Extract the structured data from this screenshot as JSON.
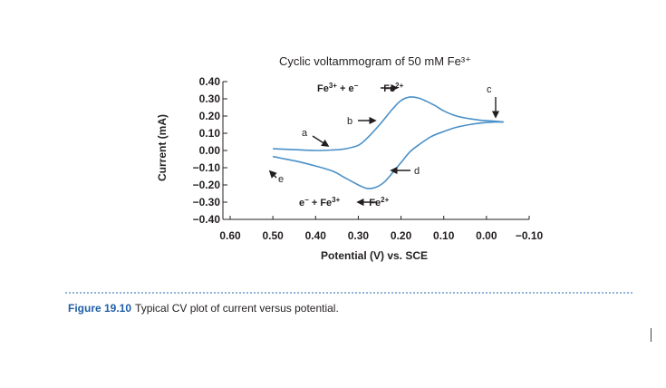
{
  "figure": {
    "label": "Figure 19.10",
    "caption": "Typical CV plot of current versus potential."
  },
  "colors": {
    "curve": "#4a90c8",
    "axis": "#231f20",
    "caption_label": "#1f5fa6",
    "rule": "#8fb3d9"
  },
  "chart_data": {
    "type": "line",
    "title": "Cyclic voltammogram of 50 mM Fe³⁺",
    "xlabel": "Potential (V) vs. SCE",
    "ylabel": "Current (mA)",
    "xlim": [
      0.6,
      -0.1
    ],
    "ylim": [
      -0.4,
      0.4
    ],
    "x_reversed": true,
    "grid": false,
    "x_ticks": [
      {
        "value": 0.6,
        "label": "0.60"
      },
      {
        "value": 0.5,
        "label": "0.50"
      },
      {
        "value": 0.4,
        "label": "0.40"
      },
      {
        "value": 0.3,
        "label": "0.30"
      },
      {
        "value": 0.2,
        "label": "0.20"
      },
      {
        "value": 0.1,
        "label": "0.10"
      },
      {
        "value": 0.0,
        "label": "0.00"
      },
      {
        "value": -0.1,
        "label": "−0.10"
      }
    ],
    "y_ticks": [
      {
        "value": 0.4,
        "label": "0.40"
      },
      {
        "value": 0.3,
        "label": "0.30"
      },
      {
        "value": 0.2,
        "label": "0.20"
      },
      {
        "value": 0.1,
        "label": "0.10"
      },
      {
        "value": 0.0,
        "label": "0.00"
      },
      {
        "value": -0.1,
        "label": "−0.10"
      },
      {
        "value": -0.2,
        "label": "−0.20"
      },
      {
        "value": -0.3,
        "label": "−0.30"
      },
      {
        "value": -0.4,
        "label": "−0.40"
      }
    ],
    "series": [
      {
        "x": [
          0.5,
          0.45,
          0.4,
          0.36,
          0.33,
          0.3,
          0.28,
          0.25,
          0.22,
          0.2,
          0.18,
          0.16,
          0.14,
          0.12,
          0.1,
          0.07,
          0.04,
          0.01,
          -0.02,
          -0.04
        ],
        "y": [
          0.01,
          0.005,
          0.0,
          0.003,
          0.01,
          0.03,
          0.07,
          0.15,
          0.24,
          0.29,
          0.31,
          0.305,
          0.285,
          0.26,
          0.23,
          0.2,
          0.185,
          0.175,
          0.17,
          0.165
        ]
      },
      {
        "x": [
          -0.04,
          -0.02,
          0.01,
          0.04,
          0.07,
          0.1,
          0.13,
          0.16,
          0.18,
          0.2,
          0.22,
          0.24,
          0.26,
          0.28,
          0.3,
          0.33,
          0.36,
          0.4,
          0.44,
          0.48,
          0.5
        ],
        "y": [
          0.165,
          0.165,
          0.16,
          0.15,
          0.135,
          0.11,
          0.08,
          0.03,
          -0.01,
          -0.07,
          -0.13,
          -0.185,
          -0.215,
          -0.22,
          -0.2,
          -0.16,
          -0.12,
          -0.09,
          -0.065,
          -0.045,
          -0.035
        ]
      }
    ],
    "annotations": [
      {
        "id": "a",
        "text": "a",
        "x": 0.37,
        "y": 0.1
      },
      {
        "id": "b",
        "text": "b",
        "x": 0.255,
        "y": 0.17
      },
      {
        "id": "c",
        "text": "c",
        "x": 0.02,
        "y": 0.37
      },
      {
        "id": "d",
        "text": "d",
        "x": 0.155,
        "y": -0.12
      },
      {
        "id": "e",
        "text": "e",
        "x": 0.475,
        "y": -0.17
      },
      {
        "id": "reaction_forward",
        "text": "Fe³⁺ + e⁻ ⟶ Fe²⁺",
        "x": 0.275,
        "y": 0.35
      },
      {
        "id": "reaction_reverse",
        "text": "e⁻ + Fe³⁺ ⟵ Fe²⁺",
        "x": 0.265,
        "y": -0.32
      }
    ]
  }
}
